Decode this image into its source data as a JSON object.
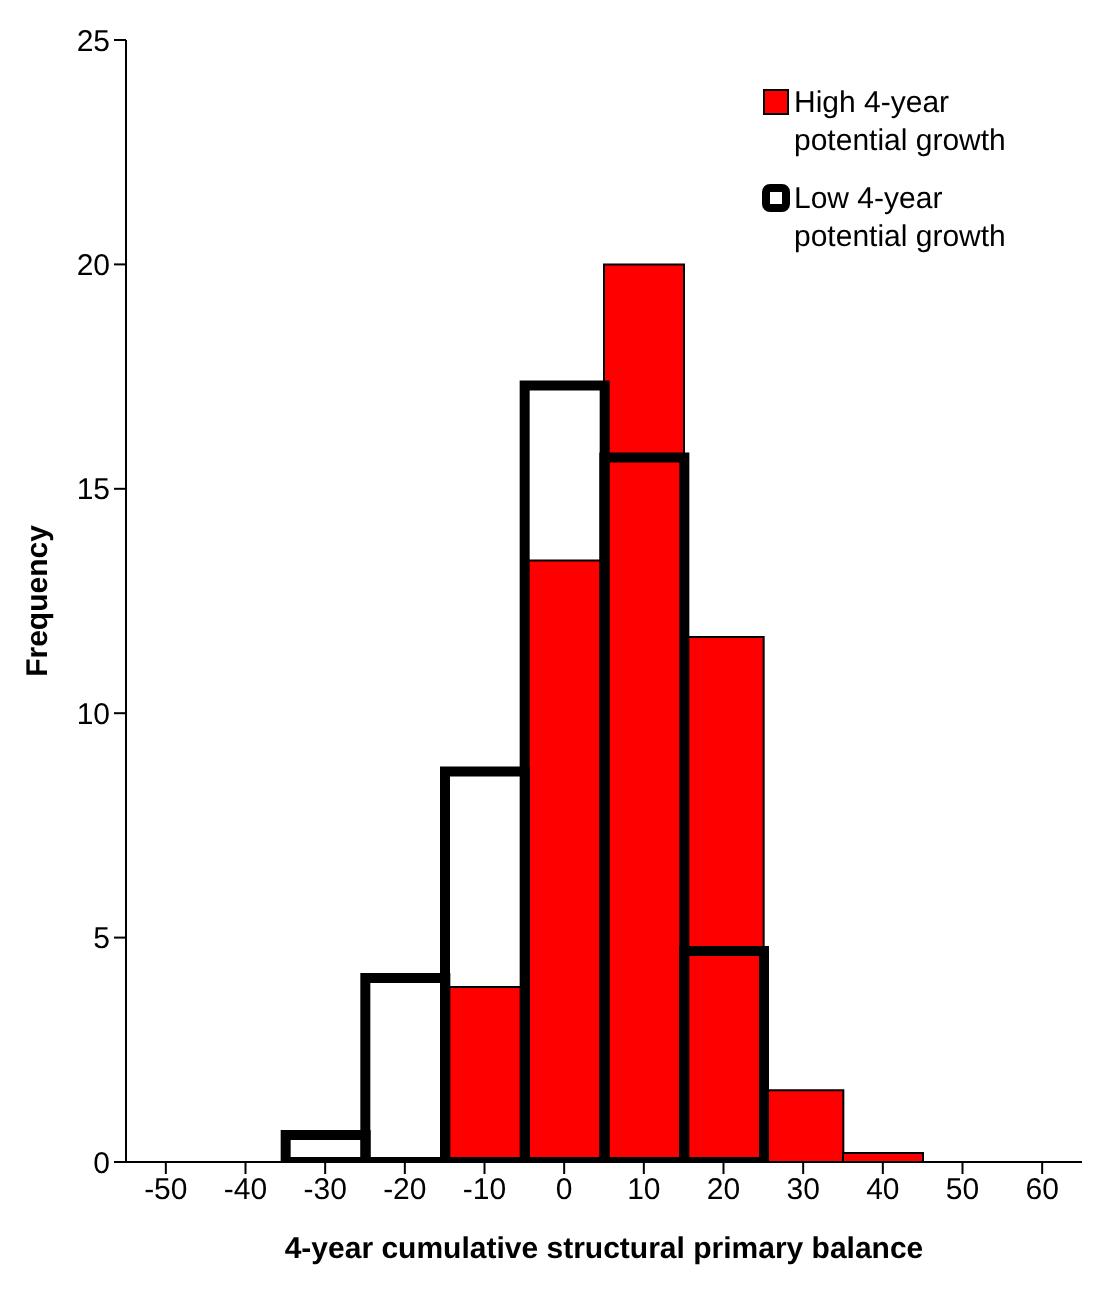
{
  "chart_data": {
    "type": "bar",
    "xlabel": "4-year cumulative structural primary balance",
    "ylabel": "Frequency",
    "categories": [
      "-50",
      "-40",
      "-30",
      "-20",
      "-10",
      "0",
      "10",
      "20",
      "30",
      "40",
      "50",
      "60"
    ],
    "series": [
      {
        "name": "High 4-year potential growth",
        "color": "#ff0000",
        "values": [
          null,
          null,
          null,
          null,
          3.9,
          13.4,
          20,
          11.7,
          1.6,
          0.2,
          null,
          null
        ]
      },
      {
        "name": "Low 4-year potential growth",
        "color": "#000000",
        "values": [
          null,
          null,
          0.6,
          4.1,
          8.7,
          17.3,
          15.7,
          4.7,
          null,
          null,
          null,
          null
        ]
      }
    ],
    "ylim": [
      0,
      25
    ],
    "yticks": [
      0,
      5,
      10,
      15,
      20,
      25
    ],
    "legend": "top right"
  }
}
